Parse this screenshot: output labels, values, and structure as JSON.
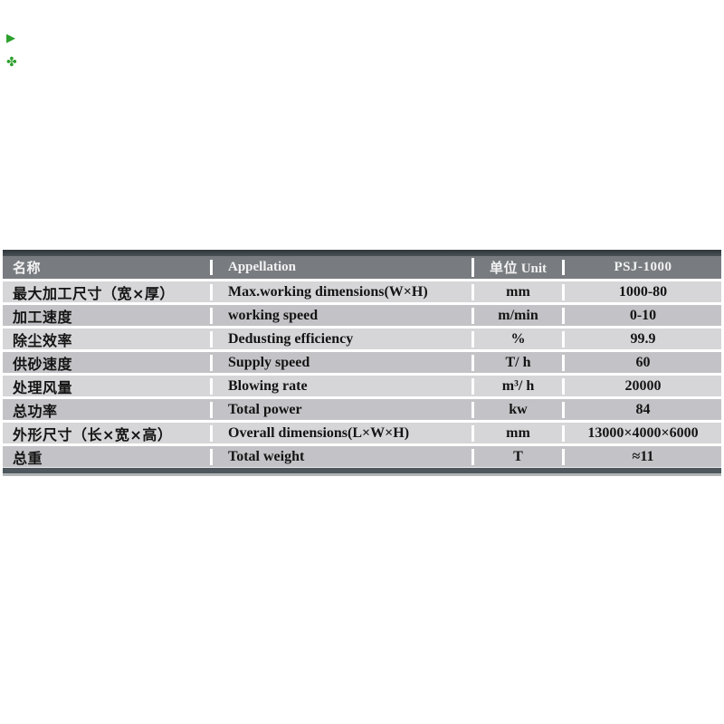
{
  "page": {
    "background": "#ffffff"
  },
  "decorations": {
    "triangle_mark": "▶",
    "clover_mark": "✤",
    "mark_color": "#2ca02c"
  },
  "table": {
    "colors": {
      "top_bar": "#3a4145",
      "header_bg": "#787c80",
      "header_text": "#f2f2f2",
      "row_light": "#d6d6d8",
      "row_dark": "#c3c3c7",
      "separator": "#ffffff",
      "bottom_bar": "#4d575d",
      "bottom_edge": "#b0b4b6",
      "body_text": "#141414"
    },
    "header": {
      "name_cn": "名称",
      "appellation": "Appellation",
      "unit_cn": "单位",
      "unit_en": "Unit",
      "model": "PSJ-1000"
    },
    "rows": [
      {
        "name_cn": "最大加工尺寸（宽×厚）",
        "appellation": "Max.working dimensions(W×H)",
        "unit": "mm",
        "value": "1000-80"
      },
      {
        "name_cn": "加工速度",
        "appellation": "working speed",
        "unit": "m/min",
        "value": "0-10"
      },
      {
        "name_cn": "除尘效率",
        "appellation": "Dedusting efficiency",
        "unit": "%",
        "value": "99.9"
      },
      {
        "name_cn": "供砂速度",
        "appellation": "Supply speed",
        "unit": "T/ h",
        "value": "60"
      },
      {
        "name_cn": "处理风量",
        "appellation": "Blowing rate",
        "unit": "m³/ h",
        "value": "20000"
      },
      {
        "name_cn": "总功率",
        "appellation": "Total power",
        "unit": "kw",
        "value": "84"
      },
      {
        "name_cn": "外形尺寸（长×宽×高）",
        "appellation": "Overall dimensions(L×W×H)",
        "unit": "mm",
        "value": "13000×4000×6000"
      },
      {
        "name_cn": "总重",
        "appellation": "Total weight",
        "unit": "T",
        "value": "≈11"
      }
    ]
  }
}
